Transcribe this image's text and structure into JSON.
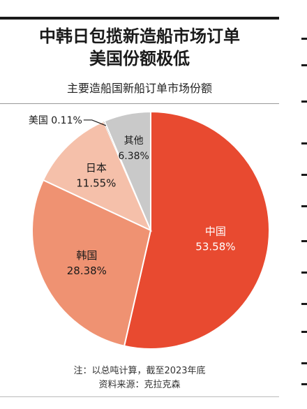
{
  "title_line1": "中韩日包揽新造船市场订单",
  "title_line2": "美国份额极低",
  "chart_data": {
    "type": "pie",
    "title": "主要造船国新船订单市场份额",
    "unit": "%",
    "slices": [
      {
        "name": "中国",
        "value": 53.58,
        "label": "53.58%",
        "color": "#e84a30",
        "text_color": "#ffffff"
      },
      {
        "name": "韩国",
        "value": 28.38,
        "label": "28.38%",
        "color": "#ef9272",
        "text_color": "#1a1a1a"
      },
      {
        "name": "日本",
        "value": 11.55,
        "label": "11.55%",
        "color": "#f5c0aa",
        "text_color": "#1a1a1a"
      },
      {
        "name": "美国",
        "value": 0.11,
        "label": "0.11%",
        "color": "#1a1a1a",
        "text_color": "#1a1a1a"
      },
      {
        "name": "其他",
        "value": 6.38,
        "label": "6.38%",
        "color": "#c9c9c9",
        "text_color": "#1a1a1a"
      }
    ]
  },
  "notes": {
    "line1": "注：以总吨计算，截至2023年底",
    "line2": "资料来源：克拉克森"
  }
}
